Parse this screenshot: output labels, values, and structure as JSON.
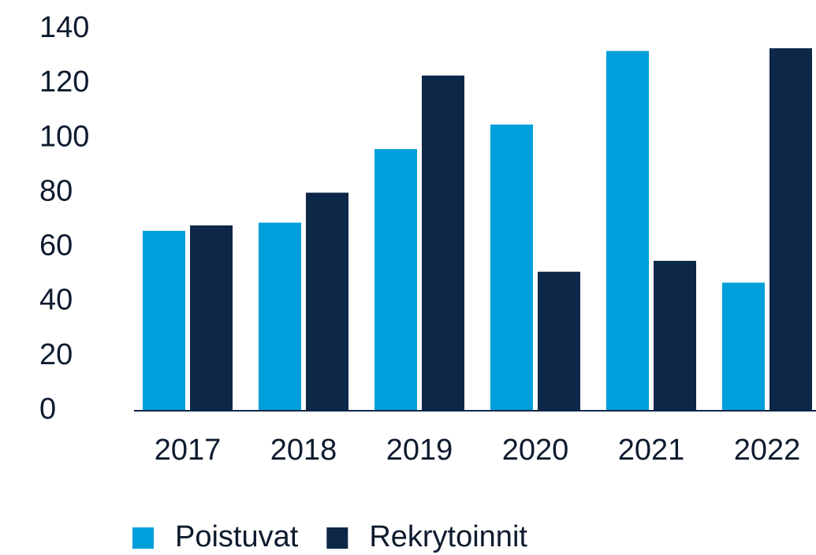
{
  "chart_data": {
    "type": "bar",
    "categories": [
      "2017",
      "2018",
      "2019",
      "2020",
      "2021",
      "2022"
    ],
    "series": [
      {
        "name": "Poistuvat",
        "color": "#009fdb",
        "values": [
          66,
          69,
          96,
          105,
          132,
          47
        ]
      },
      {
        "name": "Rekrytoinnit",
        "color": "#0d2748",
        "values": [
          68,
          80,
          123,
          51,
          55,
          133
        ]
      }
    ],
    "ylim": [
      0,
      140
    ],
    "yticks": [
      0,
      20,
      40,
      60,
      80,
      100,
      120,
      140
    ],
    "grid": false,
    "legend": "bottom"
  }
}
